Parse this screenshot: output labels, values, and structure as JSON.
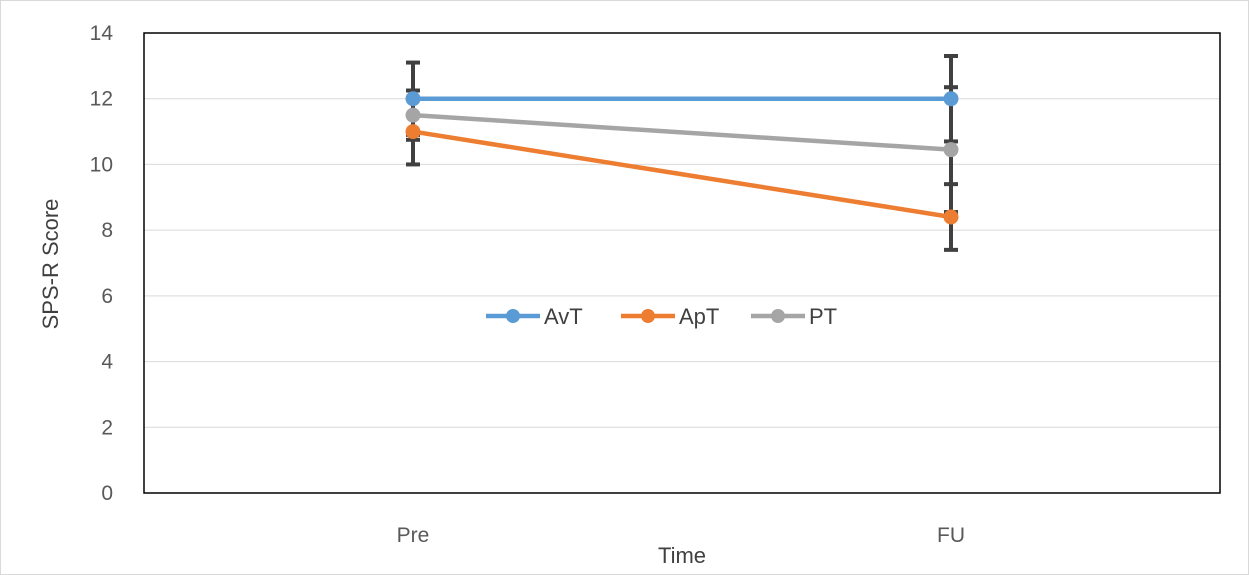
{
  "chart_data": {
    "type": "line",
    "title": "",
    "xlabel": "Time",
    "ylabel": "SPS-R Score",
    "categories": [
      "Pre",
      "FU"
    ],
    "ylim": [
      0,
      14
    ],
    "y_ticks": [
      0,
      2,
      4,
      6,
      8,
      10,
      12,
      14
    ],
    "grid": true,
    "legend_position": "center",
    "series": [
      {
        "name": "AvT",
        "values": [
          12.0,
          12.0
        ],
        "error": [
          1.1,
          1.3
        ],
        "color": "#5b9bd5"
      },
      {
        "name": "ApT",
        "values": [
          11.0,
          8.4
        ],
        "error": [
          1.0,
          1.0
        ],
        "color": "#ed7d31"
      },
      {
        "name": "PT",
        "values": [
          11.5,
          10.45
        ],
        "error": [
          0.75,
          1.9
        ],
        "color": "#a5a5a5"
      }
    ],
    "error_bar_color": "#404040"
  }
}
